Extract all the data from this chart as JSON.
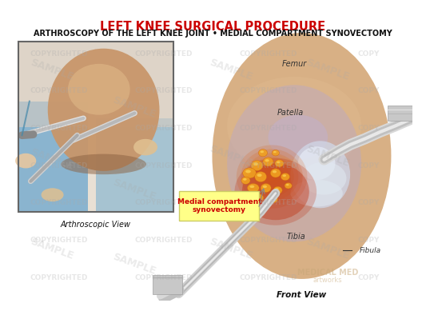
{
  "title_main": "LEFT KNEE SURGICAL PROCEDURE",
  "title_sub": "ARTHROSCOPY OF THE LEFT KNEE JOINT • MEDIAL COMPARTMENT SYNOVECTOMY",
  "title_main_color": "#cc0000",
  "title_sub_color": "#111111",
  "title_main_fontsize": 10.5,
  "title_sub_fontsize": 7.0,
  "bg_color": "#ffffff",
  "label_arthroscopic": "Arthroscopic View",
  "label_front": "Front View",
  "label_femur": "Femur",
  "label_patella": "Patella",
  "label_tibia": "Tibia",
  "label_fibula": "Fibula",
  "label_medial_box_text": "Medial compartment\nsynovectomy",
  "label_medial_box_bg": "#ffff88",
  "label_medial_box_text_color": "#cc0000",
  "wm_color": "#aaaaaa",
  "wm_alpha": 0.28,
  "skin_color": "#d4b090",
  "skin_dark": "#c09870",
  "knee_bg": "#c8a878",
  "inset_border": "#666666",
  "blue_drape": "#7aadcf",
  "instrument_gray": "#b0b0b0"
}
